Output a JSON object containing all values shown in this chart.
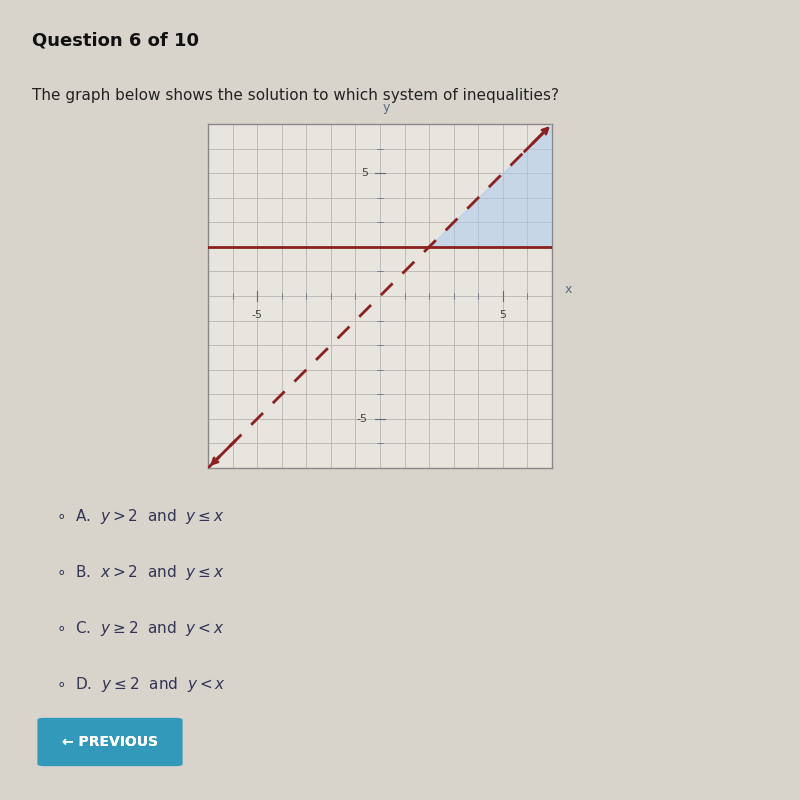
{
  "title": "Question 6 of 10",
  "subtitle": "The graph below shows the solution to which system of inequalities?",
  "bg_color": "#d8d4cc",
  "plot_bg": "#e8e4de",
  "grid_color": "#b0aaaa",
  "line_color": "#8b2020",
  "shade_color": "#aaccee",
  "shade_alpha": 0.55,
  "horizontal_line_y": 2,
  "xlim": [
    -7,
    7
  ],
  "ylim": [
    -7,
    7
  ],
  "choices": [
    "A.  y > 2  and  y ≤ x",
    "B.  x > 2  and  y ≤ x",
    "C.  y ≥ 2  and  y < x",
    "D.  y ≤ 2  and  y < x"
  ],
  "axis_color": "#5a6a7a",
  "tick_label_color": "#444444",
  "title_color": "#111111",
  "subtitle_color": "#222222",
  "choice_color": "#333355"
}
